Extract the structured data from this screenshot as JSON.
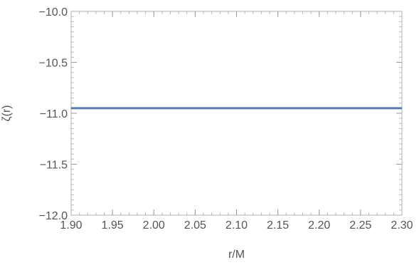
{
  "chart_data": {
    "type": "line",
    "xlabel": "r/M",
    "ylabel": "ζ(r)",
    "xlim": [
      1.9,
      2.3
    ],
    "ylim": [
      -12.0,
      -10.0
    ],
    "x_ticks": [
      "1.90",
      "1.95",
      "2.00",
      "2.05",
      "2.10",
      "2.15",
      "2.20",
      "2.25",
      "2.30"
    ],
    "y_ticks": [
      "-10.0",
      "-10.5",
      "-11.0",
      "-11.5",
      "-12.0"
    ],
    "y_tick_labels": [
      "−10.0",
      "−10.5",
      "−11.0",
      "−11.5",
      "−12.0"
    ],
    "grid": false,
    "series": [
      {
        "color": "#5b7bab",
        "x": [
          1.9,
          2.3
        ],
        "y": [
          -10.95,
          -10.95
        ]
      }
    ]
  }
}
